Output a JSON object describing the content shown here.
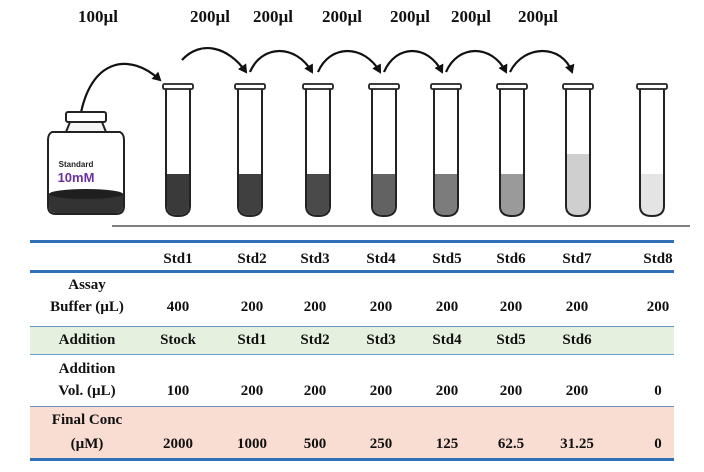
{
  "transfer_labels": [
    "100µl",
    "200µl",
    "200µl",
    "200µl",
    "200µl",
    "200µl",
    "200µl"
  ],
  "stock_jar": {
    "line1": "Standard",
    "line2": "10mM"
  },
  "table": {
    "headers": [
      "Std1",
      "Std2",
      "Std3",
      "Std4",
      "Std5",
      "Std6",
      "Std7",
      "Std8"
    ],
    "rows": [
      {
        "label_lines": [
          "Assay",
          "Buffer (µL)"
        ],
        "values": [
          "400",
          "200",
          "200",
          "200",
          "200",
          "200",
          "200",
          "200"
        ]
      },
      {
        "label_lines": [
          "Addition"
        ],
        "values": [
          "Stock",
          "Std1",
          "Std2",
          "Std3",
          "Std4",
          "Std5",
          "Std6",
          ""
        ]
      },
      {
        "label_lines": [
          "Addition",
          "Vol. (µL)"
        ],
        "values": [
          "100",
          "200",
          "200",
          "200",
          "200",
          "200",
          "200",
          "0"
        ]
      },
      {
        "label_lines": [
          "Final Conc",
          "(µM)"
        ],
        "values": [
          "2000",
          "1000",
          "500",
          "250",
          "125",
          "62.5",
          "31.25",
          "0"
        ]
      }
    ]
  },
  "colors": {
    "table_rule": "#2f70b8",
    "addition_band": "#e6f0df",
    "final_conc_band": "#f9dcd2",
    "tube_fills": [
      "#3a3a3a",
      "#404040",
      "#4a4a4a",
      "#626262",
      "#7c7c7c",
      "#9a9a9a",
      "#cfcfcf",
      "#e4e4e4"
    ]
  }
}
